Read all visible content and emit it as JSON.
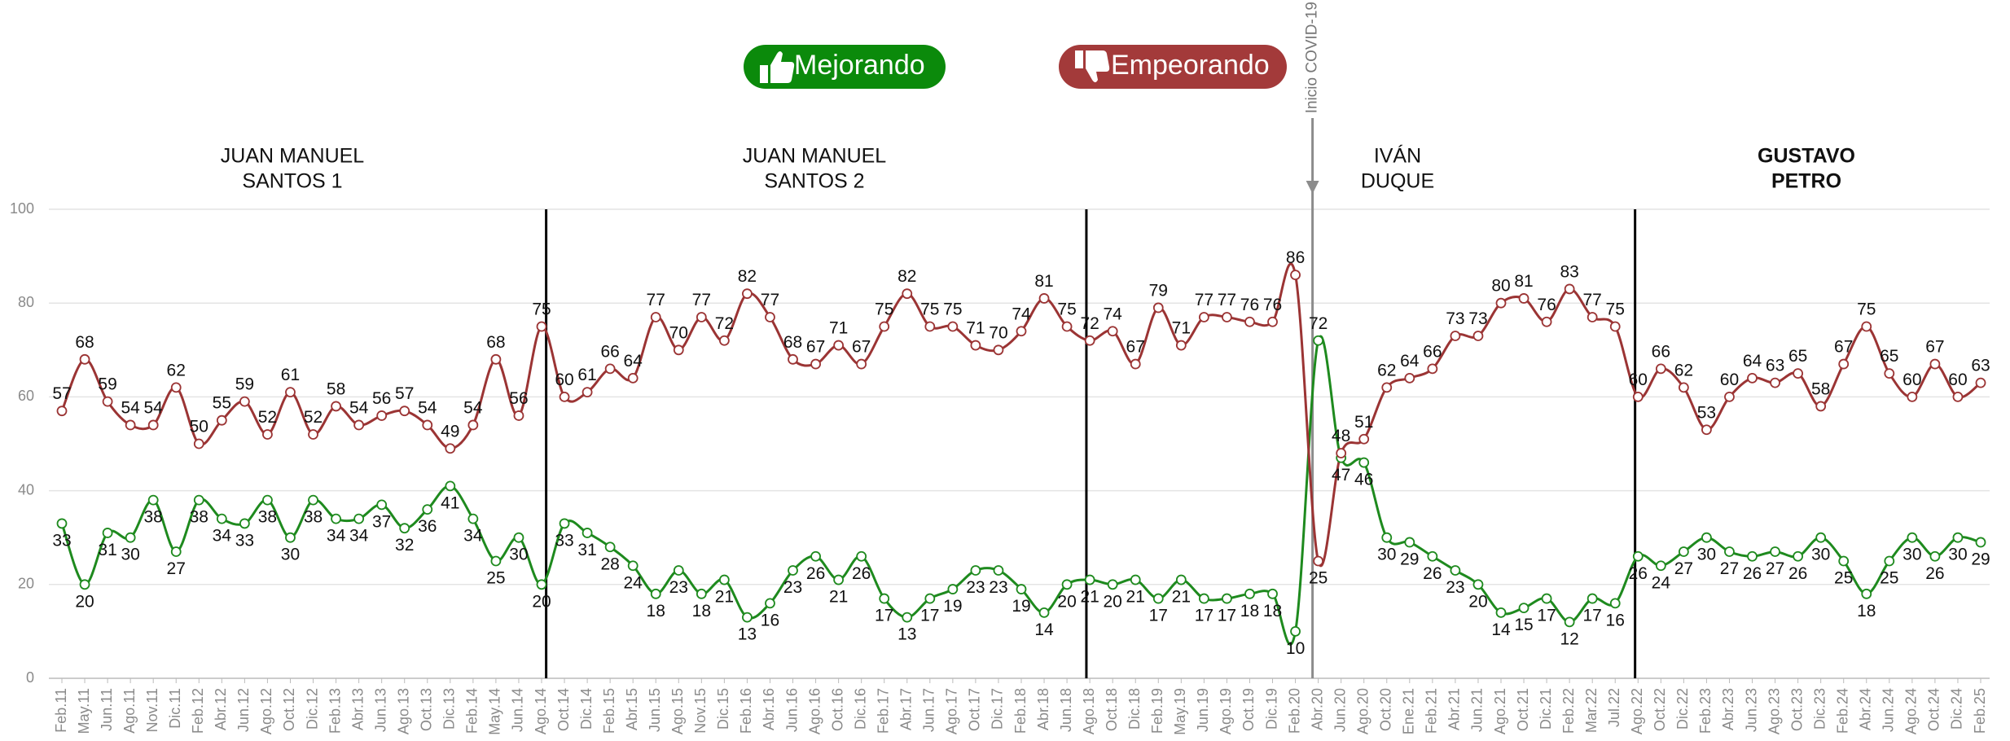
{
  "chart_data": {
    "type": "line",
    "categories": [
      "Feb.11",
      "May.11",
      "Jun.11",
      "Ago.11",
      "Nov.11",
      "Dic.11",
      "Feb.12",
      "Abr.12",
      "Jun.12",
      "Ago.12",
      "Oct.12",
      "Dic.12",
      "Feb.13",
      "Abr.13",
      "Jun.13",
      "Ago.13",
      "Oct.13",
      "Dic.13",
      "Feb.14",
      "May.14",
      "Jun.14",
      "Ago.14",
      "Oct.14",
      "Dic.14",
      "Feb.15",
      "Abr.15",
      "Jun.15",
      "Ago.15",
      "Nov.15",
      "Dic.15",
      "Feb.16",
      "Abr.16",
      "Jun.16",
      "Ago.16",
      "Oct.16",
      "Dic.16",
      "Feb.17",
      "Abr.17",
      "Jun.17",
      "Ago.17",
      "Oct.17",
      "Dic.17",
      "Feb.18",
      "Abr.18",
      "Jun.18",
      "Ago.18",
      "Oct.18",
      "Dic.18",
      "Feb.19",
      "May.19",
      "Jun.19",
      "Ago.19",
      "Oct.19",
      "Dic.19",
      "Feb.20",
      "Abr.20",
      "Jun.20",
      "Ago.20",
      "Oct.20",
      "Ene.21",
      "Feb.21",
      "Abr.21",
      "Jun.21",
      "Ago.21",
      "Oct.21",
      "Dic.21",
      "Feb.22",
      "Mar.22",
      "Jul.22",
      "Ago.22",
      "Oct.22",
      "Dic.22",
      "Feb.23",
      "Abr.23",
      "Jun.23",
      "Ago.23",
      "Oct.23",
      "Dic.23",
      "Feb.24",
      "Abr.24",
      "Jun.24",
      "Ago.24",
      "Oct.24",
      "Dic.24",
      "Feb.25"
    ],
    "series": [
      {
        "name": "Mejorando",
        "color": "#1e8a1e",
        "values": [
          33,
          20,
          31,
          30,
          38,
          27,
          38,
          34,
          33,
          38,
          30,
          38,
          34,
          34,
          37,
          32,
          36,
          41,
          34,
          25,
          30,
          20,
          33,
          31,
          28,
          24,
          18,
          23,
          18,
          21,
          13,
          16,
          23,
          26,
          21,
          26,
          17,
          13,
          17,
          19,
          23,
          23,
          19,
          14,
          20,
          21,
          20,
          21,
          17,
          21,
          17,
          17,
          18,
          18,
          10,
          72,
          47,
          46,
          30,
          29,
          26,
          23,
          20,
          14,
          15,
          17,
          12,
          17,
          16,
          26,
          24,
          27,
          30,
          27,
          26,
          27,
          26,
          30,
          25,
          18,
          25,
          30,
          26,
          30,
          29
        ]
      },
      {
        "name": "Empeorando",
        "color": "#9b3434",
        "values": [
          57,
          68,
          59,
          54,
          54,
          62,
          50,
          55,
          59,
          52,
          61,
          52,
          58,
          54,
          56,
          57,
          54,
          49,
          54,
          68,
          56,
          75,
          60,
          61,
          66,
          64,
          77,
          70,
          77,
          72,
          82,
          77,
          68,
          67,
          71,
          67,
          75,
          82,
          75,
          75,
          71,
          70,
          74,
          81,
          75,
          72,
          74,
          67,
          79,
          71,
          77,
          77,
          76,
          76,
          86,
          25,
          48,
          51,
          62,
          64,
          66,
          73,
          73,
          80,
          81,
          76,
          83,
          77,
          75,
          60,
          66,
          62,
          53,
          60,
          64,
          63,
          65,
          58,
          67,
          75,
          65,
          60,
          67,
          60,
          63
        ]
      }
    ],
    "ylim": [
      0,
      100
    ],
    "yticks": [
      0,
      20,
      40,
      60,
      80,
      100
    ],
    "grid": true,
    "periods": [
      [
        "JUAN MANUEL",
        "SANTOS 1"
      ],
      [
        "JUAN MANUEL",
        "SANTOS 2"
      ],
      [
        "IVÁN",
        "DUQUE"
      ],
      [
        "GUSTAVO",
        "PETRO"
      ]
    ],
    "annotation": "Inicio COVID-19"
  }
}
